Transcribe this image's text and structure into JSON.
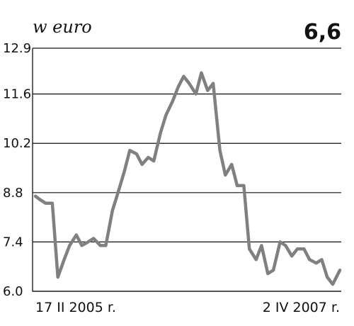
{
  "chart_data": {
    "type": "line",
    "unit_label": "w euro",
    "headline_value": "6,6",
    "ylim": [
      6.0,
      12.9
    ],
    "y_ticks": [
      "12.9",
      "11.6",
      "10.2",
      "8.8",
      "7.4",
      "6.0"
    ],
    "y_tick_values": [
      12.9,
      11.6,
      10.2,
      8.8,
      7.4,
      6.0
    ],
    "x_tick_labels": [
      "17 II 2005 r.",
      "2 IV 2007 r."
    ],
    "grid": true,
    "color": "#808080",
    "series": [
      {
        "x": [
          "2005-02-17",
          "2005-03-01",
          "2005-03-15",
          "2005-04-01",
          "2005-04-15",
          "2005-05-01",
          "2005-05-15",
          "2005-06-01",
          "2005-06-15",
          "2005-07-01",
          "2005-07-15",
          "2005-08-01",
          "2005-08-15",
          "2005-09-01",
          "2005-09-15",
          "2005-10-01",
          "2005-10-15",
          "2005-11-01",
          "2005-11-15",
          "2005-12-01",
          "2005-12-15",
          "2006-01-01",
          "2006-01-15",
          "2006-02-01",
          "2006-02-15",
          "2006-03-01",
          "2006-03-15",
          "2006-04-01",
          "2006-04-15",
          "2006-05-01",
          "2006-05-15",
          "2006-06-01",
          "2006-06-15",
          "2006-07-01",
          "2006-07-15",
          "2006-08-01",
          "2006-08-15",
          "2006-09-01",
          "2006-09-15",
          "2006-10-01",
          "2006-10-15",
          "2006-11-01",
          "2006-11-15",
          "2006-12-01",
          "2006-12-15",
          "2007-01-01",
          "2007-01-15",
          "2007-02-01",
          "2007-02-15",
          "2007-03-01",
          "2007-03-15",
          "2007-04-02"
        ],
        "values": [
          8.7,
          8.6,
          8.5,
          8.5,
          6.4,
          6.9,
          7.3,
          7.6,
          7.3,
          7.4,
          7.5,
          7.3,
          7.3,
          8.3,
          8.8,
          9.4,
          10.0,
          9.9,
          9.6,
          9.8,
          9.7,
          10.5,
          11.0,
          11.4,
          11.8,
          12.1,
          11.9,
          11.6,
          12.2,
          11.7,
          11.9,
          10.0,
          9.3,
          9.6,
          9.0,
          9.0,
          7.2,
          6.9,
          7.3,
          6.5,
          6.6,
          7.4,
          7.3,
          7.0,
          7.2,
          7.2,
          6.9,
          6.8,
          6.9,
          6.4,
          6.2,
          6.6
        ]
      }
    ]
  }
}
